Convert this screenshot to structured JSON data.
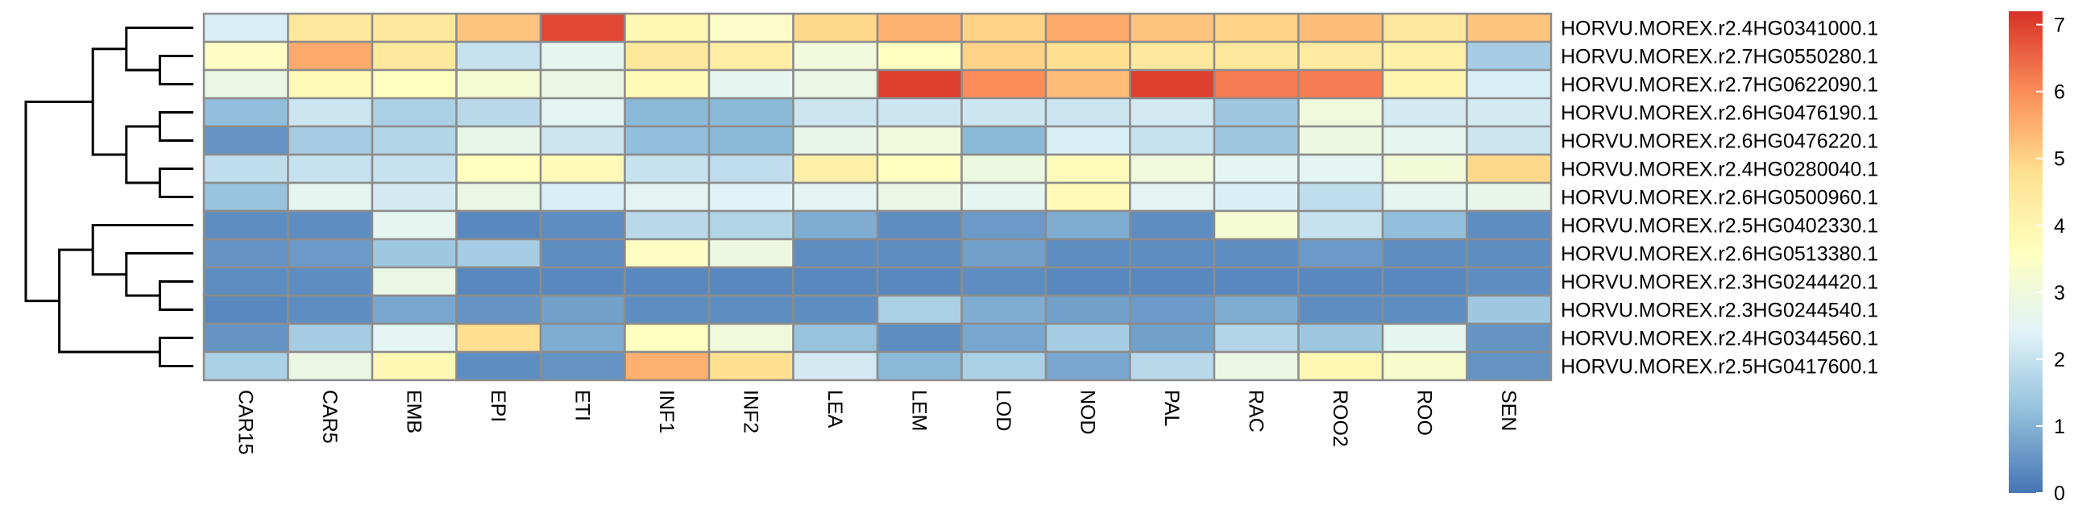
{
  "chart_data": {
    "type": "heatmap",
    "title": "",
    "xlabel": "",
    "ylabel": "",
    "columns": [
      "CAR15",
      "CAR5",
      "EMB",
      "EPI",
      "ETI",
      "INF1",
      "INF2",
      "LEA",
      "LEM",
      "LOD",
      "NOD",
      "PAL",
      "RAC",
      "ROO2",
      "ROO",
      "SEN"
    ],
    "rows": [
      "HORVU.MOREX.r2.4HG0341000.1",
      "HORVU.MOREX.r2.7HG0550280.1",
      "HORVU.MOREX.r2.7HG0622090.1",
      "HORVU.MOREX.r2.6HG0476190.1",
      "HORVU.MOREX.r2.6HG0476220.1",
      "HORVU.MOREX.r2.4HG0280040.1",
      "HORVU.MOREX.r2.6HG0500960.1",
      "HORVU.MOREX.r2.5HG0402330.1",
      "HORVU.MOREX.r2.6HG0513380.1",
      "HORVU.MOREX.r2.3HG0244420.1",
      "HORVU.MOREX.r2.3HG0244540.1",
      "HORVU.MOREX.r2.4HG0344560.1",
      "HORVU.MOREX.r2.5HG0417600.1"
    ],
    "values": [
      [
        2.3,
        4.5,
        4.5,
        5.2,
        6.9,
        3.9,
        3.4,
        4.9,
        5.5,
        5.0,
        5.6,
        5.2,
        5.0,
        5.3,
        4.5,
        5.2
      ],
      [
        3.5,
        5.6,
        4.5,
        2.0,
        2.6,
        4.5,
        4.3,
        3.0,
        3.6,
        5.0,
        4.8,
        4.5,
        4.5,
        4.4,
        4.2,
        1.5
      ],
      [
        2.8,
        3.8,
        3.6,
        3.2,
        2.8,
        3.8,
        2.6,
        2.8,
        7.0,
        6.0,
        5.3,
        7.0,
        6.2,
        6.2,
        4.0,
        2.3
      ],
      [
        1.2,
        2.1,
        1.6,
        1.8,
        2.5,
        1.1,
        1.1,
        2.1,
        2.1,
        2.1,
        2.1,
        2.2,
        1.4,
        3.0,
        2.2,
        2.2
      ],
      [
        0.5,
        1.5,
        1.7,
        2.7,
        2.1,
        1.2,
        1.1,
        2.7,
        3.0,
        1.1,
        2.3,
        2.0,
        1.4,
        2.9,
        2.6,
        2.1
      ],
      [
        1.9,
        2.0,
        2.0,
        3.6,
        3.8,
        2.0,
        1.9,
        4.2,
        3.6,
        2.9,
        3.7,
        3.0,
        2.5,
        2.5,
        3.1,
        4.9
      ],
      [
        1.3,
        2.6,
        2.2,
        2.8,
        2.3,
        2.5,
        2.4,
        2.5,
        2.8,
        2.6,
        3.8,
        2.5,
        2.3,
        1.9,
        2.6,
        2.7
      ],
      [
        0.4,
        0.4,
        2.6,
        0.3,
        0.4,
        1.8,
        1.7,
        0.9,
        0.4,
        0.6,
        0.9,
        0.4,
        3.2,
        2.0,
        1.2,
        0.4
      ],
      [
        0.5,
        0.6,
        1.4,
        1.5,
        0.4,
        3.5,
        2.9,
        0.4,
        0.4,
        0.7,
        0.4,
        0.4,
        0.4,
        0.6,
        0.4,
        0.4
      ],
      [
        0.4,
        0.4,
        2.8,
        0.3,
        0.3,
        0.3,
        0.3,
        0.3,
        0.3,
        0.4,
        0.3,
        0.3,
        0.3,
        0.3,
        0.3,
        0.4
      ],
      [
        0.3,
        0.4,
        0.8,
        0.5,
        0.7,
        0.4,
        0.4,
        0.4,
        1.6,
        0.9,
        0.7,
        0.6,
        0.9,
        0.4,
        0.4,
        1.4
      ],
      [
        0.5,
        1.5,
        2.5,
        4.8,
        0.9,
        3.6,
        3.0,
        1.3,
        0.4,
        0.8,
        1.5,
        0.7,
        1.7,
        1.4,
        2.6,
        0.5
      ],
      [
        1.6,
        2.8,
        3.9,
        0.4,
        0.5,
        5.5,
        4.8,
        2.2,
        1.1,
        1.6,
        0.8,
        1.8,
        2.8,
        3.9,
        3.3,
        0.5
      ]
    ],
    "legend": {
      "min": 0,
      "max": 7.2,
      "ticks": [
        0,
        1,
        2,
        3,
        4,
        5,
        6,
        7
      ],
      "colors": [
        "#4575B4",
        "#91BFDB",
        "#E0F3F8",
        "#FFFFBF",
        "#FEE090",
        "#FC8D59",
        "#D73027"
      ]
    },
    "dendrogram": {
      "placement": "left",
      "merges": [
        [
          1,
          2
        ],
        [
          0,
          13
        ],
        [
          5,
          6
        ],
        [
          3,
          4
        ],
        [
          15,
          16
        ],
        [
          9,
          10
        ],
        [
          8,
          18
        ],
        [
          7,
          19
        ],
        [
          11,
          12
        ],
        [
          20,
          21
        ],
        [
          14,
          17
        ],
        [
          22,
          23
        ]
      ]
    },
    "grid": true
  }
}
